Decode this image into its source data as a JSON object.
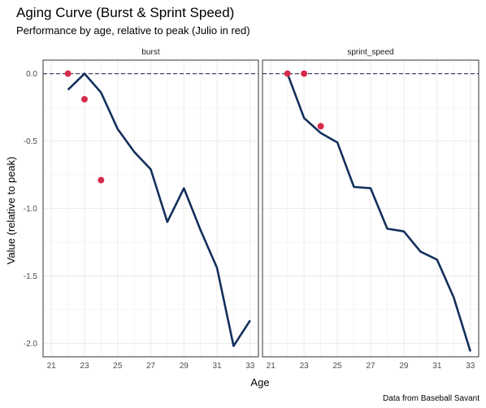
{
  "chart_data": {
    "type": "line",
    "title": "Aging Curve (Burst & Sprint Speed)",
    "subtitle": "Performance by age, relative to peak (Julio in red)",
    "xlabel": "Age",
    "ylabel": "Value (relative to peak)",
    "caption": "Data from Baseball Savant",
    "xlim": [
      20.5,
      33.5
    ],
    "ylim": [
      -2.1,
      0.1
    ],
    "x_ticks": [
      21,
      23,
      25,
      27,
      29,
      31,
      33
    ],
    "y_ticks": [
      0.0,
      -0.5,
      -1.0,
      -1.5,
      -2.0
    ],
    "y_tick_labels": [
      "0.0",
      "-0.5",
      "-1.0",
      "-1.5",
      "-2.0"
    ],
    "reference_line": 0,
    "grid": true,
    "colors": {
      "curve": "#13305c",
      "player": "#d52b4a",
      "reference": "#3f4a6b",
      "grid": "#ebebeb",
      "panel_border": "#333333"
    },
    "panels": [
      {
        "name": "burst",
        "curve": {
          "x": [
            22,
            23,
            24,
            25,
            26,
            27,
            28,
            29,
            30,
            31,
            32,
            33
          ],
          "y": [
            -0.12,
            0.0,
            -0.14,
            -0.41,
            -0.58,
            -0.71,
            -1.1,
            -0.85,
            -1.16,
            -1.44,
            -2.02,
            -1.83
          ]
        },
        "player": {
          "x": [
            22,
            23,
            24
          ],
          "y": [
            0.0,
            -0.19,
            -0.79
          ]
        }
      },
      {
        "name": "sprint_speed",
        "curve": {
          "x": [
            22,
            23,
            24,
            25,
            26,
            27,
            28,
            29,
            30,
            31,
            32,
            33
          ],
          "y": [
            0.0,
            -0.33,
            -0.44,
            -0.51,
            -0.84,
            -0.85,
            -1.15,
            -1.17,
            -1.32,
            -1.38,
            -1.66,
            -2.06
          ]
        },
        "player": {
          "x": [
            22,
            23,
            24
          ],
          "y": [
            0.0,
            0.0,
            -0.39
          ]
        }
      }
    ]
  }
}
